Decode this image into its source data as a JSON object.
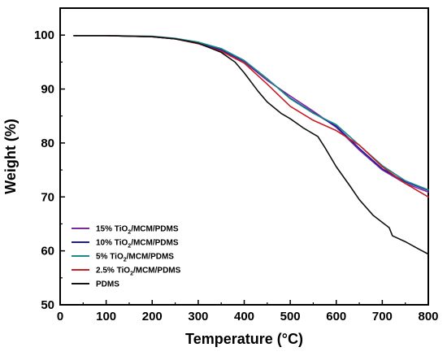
{
  "chart_data": {
    "type": "line",
    "xlabel": "Temperature (°C)",
    "ylabel": "Weight (%)",
    "xlim": [
      0,
      800
    ],
    "ylim": [
      50,
      105
    ],
    "xticks": [
      0,
      100,
      200,
      300,
      400,
      500,
      600,
      700,
      800
    ],
    "yticks": [
      50,
      60,
      70,
      80,
      90,
      100
    ],
    "xtick_labels": [
      "0",
      "100",
      "200",
      "300",
      "400",
      "500",
      "600",
      "700",
      "800"
    ],
    "ytick_labels": [
      "50",
      "60",
      "70",
      "80",
      "90",
      "100"
    ],
    "grid": false,
    "legend_position": "bottom-left",
    "series": [
      {
        "name": "15% TiO2/MCM/PDMS",
        "label_main": "15% TiO",
        "label_sub": "2",
        "label_rest": "/MCM/PDMS",
        "color": "#7b2a9a",
        "x": [
          30,
          100,
          200,
          250,
          300,
          350,
          400,
          450,
          500,
          550,
          600,
          650,
          700,
          750,
          800
        ],
        "y": [
          99.9,
          99.9,
          99.7,
          99.3,
          98.5,
          97.2,
          95.0,
          91.6,
          88.7,
          85.9,
          82.9,
          78.7,
          75.0,
          72.5,
          70.9
        ]
      },
      {
        "name": "10% TiO2/MCM/PDMS",
        "label_main": "10% TiO",
        "label_sub": "2",
        "label_rest": "/MCM/PDMS",
        "color": "#1c1c9c",
        "x": [
          30,
          100,
          200,
          250,
          300,
          350,
          400,
          450,
          500,
          550,
          600,
          650,
          700,
          750,
          800
        ],
        "y": [
          99.9,
          99.9,
          99.7,
          99.3,
          98.6,
          97.3,
          95.2,
          91.9,
          88.3,
          85.6,
          83.1,
          79.0,
          75.2,
          72.8,
          71.2
        ]
      },
      {
        "name": "5% TiO2/MCM/PDMS",
        "label_main": "5% TiO",
        "label_sub": "2",
        "label_rest": "/MCM/PDMS",
        "color": "#1d8a88",
        "x": [
          30,
          100,
          200,
          250,
          300,
          350,
          400,
          450,
          500,
          550,
          600,
          650,
          700,
          750,
          800
        ],
        "y": [
          99.9,
          99.9,
          99.8,
          99.4,
          98.7,
          97.5,
          95.3,
          91.9,
          88.2,
          85.5,
          83.4,
          79.6,
          75.8,
          73.0,
          71.3
        ]
      },
      {
        "name": "2.5% TiO2/MCM/PDMS",
        "label_main": "2.5% TiO",
        "label_sub": "2",
        "label_rest": "/MCM/PDMS",
        "color": "#c81e24",
        "x": [
          30,
          100,
          200,
          250,
          300,
          350,
          400,
          450,
          500,
          550,
          600,
          650,
          700,
          750,
          800
        ],
        "y": [
          99.9,
          99.9,
          99.7,
          99.3,
          98.4,
          97.0,
          94.8,
          90.9,
          86.8,
          84.2,
          82.3,
          79.6,
          75.6,
          72.5,
          70.0
        ]
      },
      {
        "name": "PDMS",
        "label_main": "PDMS",
        "label_sub": "",
        "label_rest": "",
        "color": "#111111",
        "x": [
          30,
          100,
          200,
          250,
          300,
          350,
          380,
          400,
          430,
          450,
          480,
          500,
          530,
          560,
          575,
          600,
          630,
          650,
          680,
          715,
          722,
          750,
          780,
          800
        ],
        "y": [
          99.9,
          99.9,
          99.7,
          99.3,
          98.5,
          96.8,
          95.0,
          93.0,
          89.6,
          87.6,
          85.5,
          84.5,
          82.7,
          81.2,
          79.2,
          75.6,
          72.0,
          69.5,
          66.6,
          64.3,
          62.8,
          61.7,
          60.3,
          59.4
        ]
      }
    ]
  }
}
